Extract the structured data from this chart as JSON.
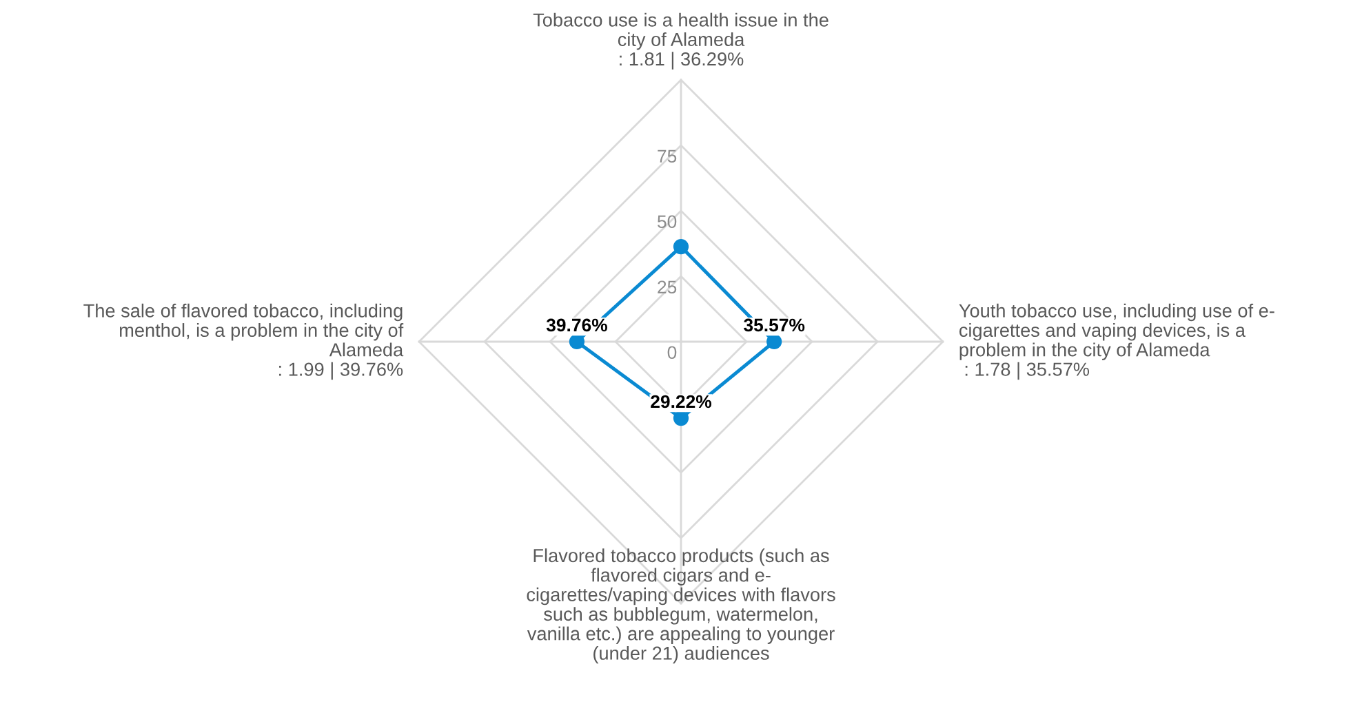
{
  "chart_data": {
    "type": "radar",
    "categories": [
      "Tobacco use is a health issue in the\ncity of Alameda\n: 1.81 | 36.29%",
      "Youth tobacco use, including use of e-\ncigarettes and vaping devices, is a\nproblem in the city of Alameda\n : 1.78 | 35.57%",
      "Flavored tobacco products (such as\nflavored cigars and e-\ncigarettes/vaping devices with flavors\nsuch as bubblegum, watermelon,\nvanilla etc.) are appealing to younger\n(under 21) audiences",
      "The sale of flavored tobacco, including\nmenthol, is a problem in the city of\nAlameda\n: 1.99 | 39.76%"
    ],
    "series": [
      {
        "color": "#0a8ad2",
        "values": [
          36.29,
          35.57,
          29.22,
          39.76
        ],
        "value_labels": [
          null,
          "35.57%",
          "29.22%",
          "39.76%"
        ]
      }
    ],
    "ylim": [
      0,
      100
    ],
    "yticks": [
      0,
      25,
      50,
      75
    ],
    "grid": true,
    "marker": "circle",
    "line_style": "solid"
  }
}
